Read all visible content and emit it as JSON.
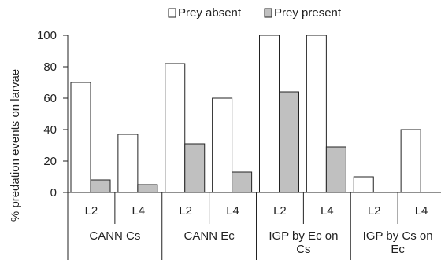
{
  "chart_data": {
    "type": "bar",
    "ylabel": "% predation events on larvae",
    "ylim": [
      0,
      100
    ],
    "yticks": [
      0,
      20,
      40,
      60,
      80,
      100
    ],
    "legend_position": "top",
    "group_labels": [
      "CANN Cs",
      "CANN Ec",
      "IGP by Ec on Cs",
      "IGP by Cs on Ec"
    ],
    "categories": [
      "L2",
      "L4",
      "L2",
      "L4",
      "L2",
      "L4",
      "L2",
      "L4"
    ],
    "series": [
      {
        "name": "Prey absent",
        "color": "#ffffff",
        "values": [
          70,
          37,
          82,
          60,
          100,
          100,
          10,
          40
        ]
      },
      {
        "name": "Prey present",
        "color": "#c0c0c0",
        "values": [
          8,
          5,
          31,
          13,
          64,
          29,
          0,
          0
        ]
      }
    ]
  }
}
